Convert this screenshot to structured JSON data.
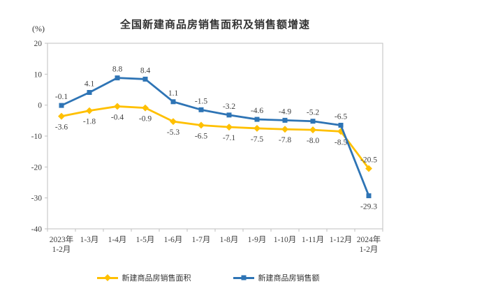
{
  "page": {
    "background": "#FFFFFF"
  },
  "chart_data": {
    "type": "line",
    "title": "全国新建商品房销售面积及销售额增速",
    "unit_label": "(%)",
    "categories": [
      "2023年\n1-2月",
      "1-3月",
      "1-4月",
      "1-5月",
      "1-6月",
      "1-7月",
      "1-8月",
      "1-9月",
      "1-10月",
      "1-11月",
      "1-12月",
      "2024年\n1-2月"
    ],
    "series": [
      {
        "key": "sales-area",
        "name": "新建商品房销售面积",
        "color": "#FFC000",
        "marker": "diamond",
        "values": [
          -3.6,
          -1.8,
          -0.4,
          -0.9,
          -5.3,
          -6.5,
          -7.1,
          -7.5,
          -7.8,
          -8.0,
          -8.5,
          -20.5
        ],
        "label_positions": [
          "below",
          "below",
          "below",
          "below",
          "below",
          "below",
          "below",
          "below",
          "below",
          "below",
          "below",
          "above"
        ]
      },
      {
        "key": "sales-amount",
        "name": "新建商品房销售额",
        "color": "#2E74B5",
        "marker": "square",
        "values": [
          -0.1,
          4.1,
          8.8,
          8.4,
          1.1,
          -1.5,
          -3.2,
          -4.6,
          -4.9,
          -5.2,
          -6.5,
          -29.3
        ],
        "label_positions": [
          "above",
          "above",
          "above",
          "above",
          "above",
          "above",
          "above",
          "above",
          "above",
          "above",
          "above",
          "below"
        ]
      }
    ],
    "ylim": [
      -40,
      20
    ],
    "ytick_step": 10,
    "yticks": [
      20,
      10,
      0,
      -10,
      -20,
      -30,
      -40
    ],
    "grid": false,
    "legend_position": "bottom",
    "axis_color": "#BFBFBF",
    "label_color": "#404040"
  }
}
